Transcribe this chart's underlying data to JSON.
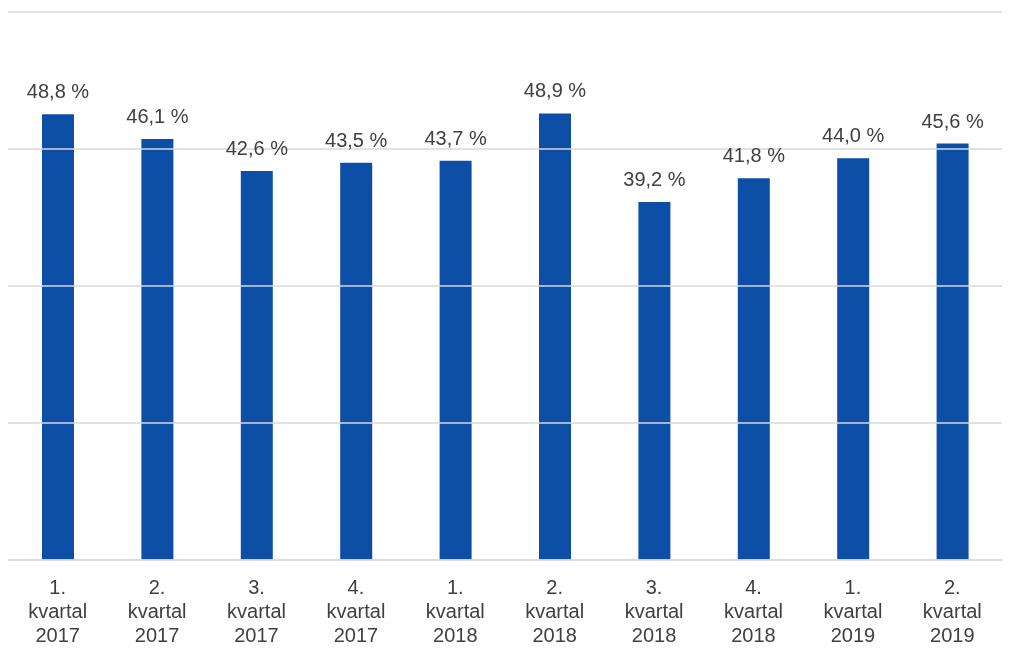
{
  "chart_data": {
    "type": "bar",
    "categories": [
      "1. kvartal 2017",
      "2. kvartal 2017",
      "3. kvartal 2017",
      "4. kvartal 2017",
      "1. kvartal 2018",
      "2. kvartal 2018",
      "3. kvartal 2018",
      "4. kvartal 2018",
      "1. kvartal 2019",
      "2. kvartal 2019"
    ],
    "values": [
      48.8,
      46.1,
      42.6,
      43.5,
      43.7,
      48.9,
      39.2,
      41.8,
      44.0,
      45.6
    ],
    "value_labels": [
      "48,8 %",
      "46,1 %",
      "42,6 %",
      "43,5 %",
      "43,7 %",
      "48,9 %",
      "39,2 %",
      "41,8 %",
      "44,0 %",
      "45,6 %"
    ],
    "color": "#0d4ea6",
    "ylim": [
      0,
      60
    ],
    "yticks": [
      {
        "value": 0,
        "label": null
      },
      {
        "value": 15,
        "label": null
      },
      {
        "value": 30,
        "label": null
      },
      {
        "value": 45,
        "label": null
      },
      {
        "value": 60,
        "label": null
      }
    ],
    "grid": "y",
    "tick_labels": "x"
  }
}
